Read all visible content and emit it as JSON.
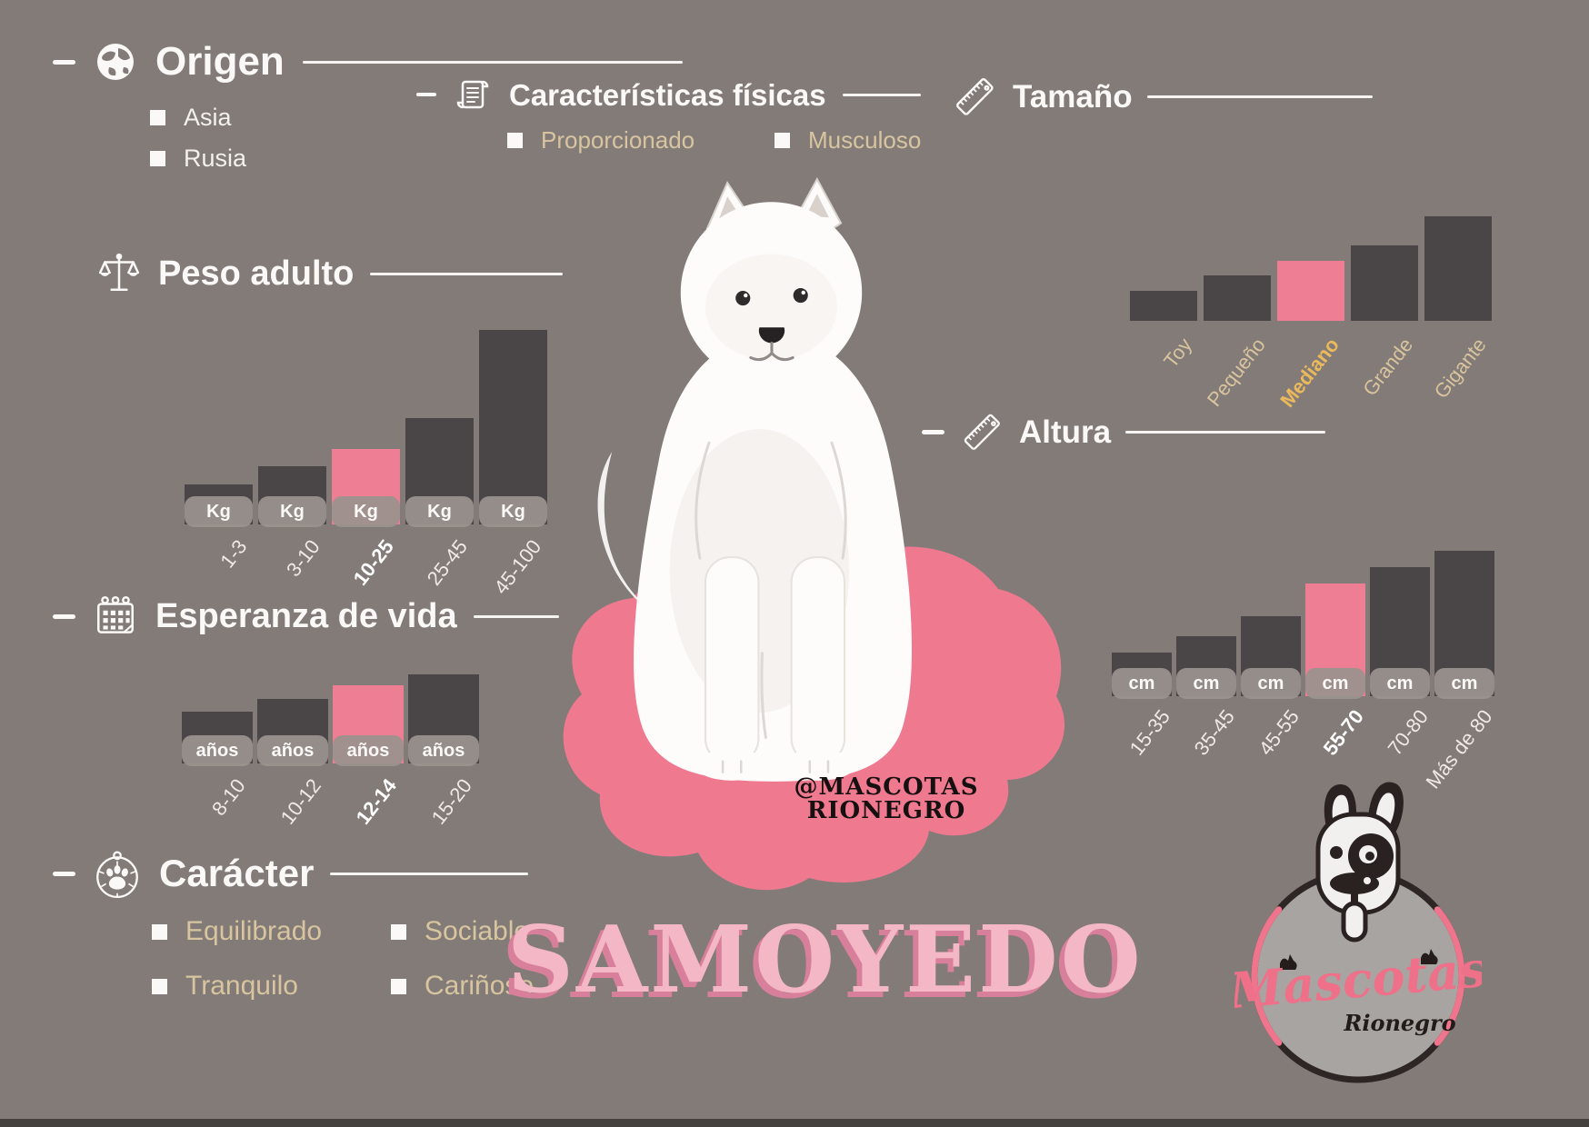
{
  "canvas": {
    "background": "#827b78",
    "footer_strip_color": "#45413e"
  },
  "colors": {
    "bar_dark": "#4a4546",
    "bar_highlight": "#ee7e93",
    "pill_bg": "#9a928e",
    "text_white": "#fbf9f7",
    "text_tan": "#d8c5a0",
    "label_gold": "#eab95c",
    "blob_pink": "#ef7a90",
    "breed_title_pink": "#f4b7c6",
    "breed_title_shadow": "#d8809b"
  },
  "icons": {
    "origen": "globe-icon",
    "caracteristicas": "scroll-icon",
    "tamano": "ruler-icon",
    "peso": "scales-icon",
    "esperanza": "calendar-icon",
    "altura": "ruler-icon",
    "caracter": "paw-medal-icon"
  },
  "sections": {
    "origen": {
      "title": "Origen",
      "items": [
        {
          "label": "Asia"
        },
        {
          "label": "Rusia"
        }
      ]
    },
    "caracteristicas": {
      "title": "Características físicas",
      "items": [
        {
          "label": "Proporcionado"
        },
        {
          "label": "Musculoso"
        }
      ]
    },
    "tamano": {
      "title": "Tamaño"
    },
    "peso": {
      "title": "Peso adulto"
    },
    "esperanza": {
      "title": "Esperanza de vida"
    },
    "altura": {
      "title": "Altura"
    },
    "caracter": {
      "title": "Carácter",
      "items": [
        {
          "label": "Equilibrado"
        },
        {
          "label": "Sociable"
        },
        {
          "label": "Tranquilo"
        },
        {
          "label": "Cariñoso"
        }
      ]
    }
  },
  "breed": {
    "name": "SAMOYEDO"
  },
  "watermark": {
    "line1": "@MASCOTAS",
    "line2": "RIONEGRO"
  },
  "logo": {
    "brand": "Mascotas",
    "location": "Rionegro"
  },
  "chart_data": [
    {
      "id": "tamano",
      "type": "bar",
      "title": "Tamaño",
      "categories": [
        "Toy",
        "Pequeño",
        "Mediano",
        "Grande",
        "Gigante"
      ],
      "values": [
        33,
        50,
        66,
        83,
        115
      ],
      "values_unit": "relative bar height (qualitative size scale, no numeric axis)",
      "unit_label": null,
      "highlight_category": "Mediano",
      "highlight_color": "#ee7e93",
      "bar_color": "#4a4546",
      "legend": "none",
      "grid": false,
      "note": "breed size category highlighted in pink, label in bold gold"
    },
    {
      "id": "peso",
      "type": "bar",
      "title": "Peso adulto",
      "categories": [
        "1-3",
        "3-10",
        "10-25",
        "25-45",
        "45-100"
      ],
      "values": [
        44,
        64,
        83,
        117,
        214
      ],
      "values_unit": "relative bar height (weight ranges in Kg, no numeric axis)",
      "unit_label": "Kg",
      "highlight_category": "10-25",
      "highlight_color": "#ee7e93",
      "bar_color": "#4a4546",
      "legend": "none",
      "grid": false,
      "note": "adult weight range 10-25 Kg highlighted"
    },
    {
      "id": "esperanza",
      "type": "bar",
      "title": "Esperanza de vida",
      "categories": [
        "8-10",
        "10-12",
        "12-14",
        "15-20"
      ],
      "values": [
        57,
        71,
        86,
        98
      ],
      "values_unit": "relative bar height (life expectancy ranges in years, no numeric axis)",
      "unit_label": "años",
      "highlight_category": "12-14",
      "highlight_color": "#ee7e93",
      "bar_color": "#4a4546",
      "legend": "none",
      "grid": false,
      "note": "life expectancy 12-14 years highlighted"
    },
    {
      "id": "altura",
      "type": "bar",
      "title": "Altura",
      "categories": [
        "15-35",
        "35-45",
        "45-55",
        "55-70",
        "70-80",
        "Más de 80"
      ],
      "values": [
        48,
        66,
        88,
        124,
        142,
        160
      ],
      "values_unit": "relative bar height (height ranges in cm, no numeric axis)",
      "unit_label": "cm",
      "highlight_category": "55-70",
      "highlight_color": "#ee7e93",
      "bar_color": "#4a4546",
      "legend": "none",
      "grid": false,
      "note": "height 55-70 cm highlighted"
    }
  ]
}
